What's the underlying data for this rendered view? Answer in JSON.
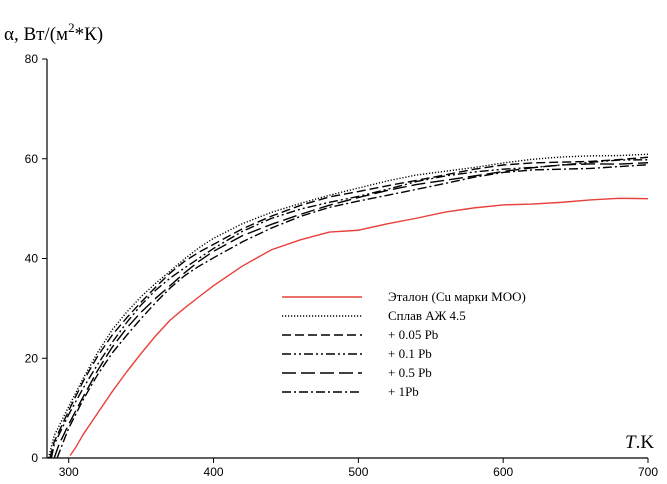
{
  "chart_data": {
    "type": "line",
    "ylabel": "α, Вт/(м2*К)",
    "ylabel_parts": {
      "main": "α, Вт/(м",
      "sup": "2",
      "tail": "*К)"
    },
    "xlabel": "T.K",
    "xlabel_parts": {
      "italic": "T",
      "rest": ".K"
    },
    "xlim": [
      285,
      700
    ],
    "ylim": [
      0,
      80
    ],
    "x_ticks": [
      300,
      400,
      500,
      600,
      700
    ],
    "y_ticks": [
      0,
      20,
      40,
      60,
      80
    ],
    "grid": false,
    "legend_position": "center-right",
    "series": [
      {
        "name": "Эталон (Cu марки МОО)",
        "color": "#e8403a",
        "dash": "solid",
        "x": [
          301,
          305,
          310,
          320,
          330,
          340,
          350,
          360,
          370,
          380,
          390,
          400,
          420,
          440,
          460,
          480,
          500,
          520,
          540,
          560,
          580,
          600,
          620,
          640,
          660,
          680,
          700
        ],
        "y": [
          0.5,
          2,
          4.5,
          9,
          13.5,
          17.5,
          21,
          24.3,
          27.4,
          30,
          32.5,
          34.8,
          38.6,
          41.6,
          43.5,
          45.2,
          45.8,
          47.2,
          48.2,
          49.2,
          49.9,
          50.6,
          51.0,
          51.5,
          51.9,
          52.0,
          52.0
        ]
      },
      {
        "name": "Сплав АЖ 4.5",
        "color": "#000000",
        "dash": "dotted",
        "x": [
          286,
          290,
          300,
          310,
          320,
          330,
          340,
          350,
          360,
          370,
          380,
          390,
          400,
          420,
          440,
          460,
          480,
          500,
          520,
          540,
          560,
          580,
          600,
          620,
          640,
          660,
          680,
          700
        ],
        "y": [
          0,
          4.5,
          10.5,
          16.2,
          21.2,
          25.5,
          29.0,
          32.3,
          35.2,
          37.7,
          40.0,
          42.0,
          43.8,
          46.9,
          49.4,
          51.3,
          52.8,
          54.0,
          55.3,
          56.6,
          57.6,
          58.5,
          59.3,
          59.8,
          60.1,
          60.4,
          60.7,
          60.9
        ]
      },
      {
        "name": "+ 0.05 Pb",
        "color": "#000000",
        "dash": "dashed",
        "x": [
          287,
          290,
          300,
          310,
          320,
          330,
          340,
          350,
          360,
          370,
          380,
          390,
          400,
          420,
          440,
          460,
          480,
          500,
          520,
          540,
          560,
          580,
          600,
          620,
          640,
          660,
          680,
          700
        ],
        "y": [
          0,
          3.5,
          9.5,
          15.2,
          20.2,
          24.6,
          28.3,
          31.5,
          34.3,
          36.9,
          39.2,
          41.2,
          43.0,
          46.2,
          48.6,
          50.5,
          52.1,
          53.3,
          54.7,
          55.9,
          56.9,
          57.8,
          58.5,
          59.0,
          59.4,
          59.7,
          60.0,
          60.3
        ]
      },
      {
        "name": "+ 0.1 Pb",
        "color": "#000000",
        "dash": "dash-dot-dot",
        "x": [
          288,
          290,
          300,
          310,
          320,
          330,
          340,
          350,
          360,
          370,
          380,
          390,
          400,
          420,
          440,
          460,
          480,
          500,
          520,
          540,
          560,
          580,
          600,
          620,
          640,
          660,
          680,
          700
        ],
        "y": [
          0,
          2.5,
          8.5,
          14.0,
          19.0,
          23.4,
          27.2,
          30.5,
          33.4,
          36.0,
          38.3,
          40.3,
          42.1,
          45.3,
          47.8,
          49.8,
          51.4,
          52.7,
          54.0,
          55.3,
          56.3,
          57.2,
          58.0,
          58.5,
          58.9,
          59.2,
          59.5,
          59.8
        ]
      },
      {
        "name": "+ 0.5 Pb",
        "color": "#000000",
        "dash": "long-dash",
        "x": [
          290,
          293,
          300,
          310,
          320,
          330,
          340,
          350,
          360,
          370,
          380,
          390,
          400,
          420,
          440,
          460,
          480,
          500,
          520,
          540,
          560,
          580,
          600,
          620,
          640,
          660,
          680,
          700
        ],
        "y": [
          0,
          2.5,
          7.0,
          12.5,
          17.6,
          22.0,
          25.8,
          29.2,
          32.2,
          34.8,
          37.2,
          39.3,
          41.2,
          44.5,
          47.0,
          49.1,
          50.8,
          52.1,
          53.4,
          54.7,
          55.8,
          56.8,
          57.6,
          58.1,
          58.5,
          58.8,
          59.0,
          59.2
        ]
      },
      {
        "name": "+ 1Pb",
        "color": "#000000",
        "dash": "dash-dot",
        "x": [
          292,
          295,
          300,
          310,
          320,
          330,
          340,
          350,
          360,
          370,
          380,
          390,
          400,
          420,
          440,
          460,
          480,
          500,
          520,
          540,
          560,
          580,
          600,
          620,
          640,
          660,
          680,
          700
        ],
        "y": [
          0,
          2.5,
          6.0,
          11.5,
          16.5,
          21.0,
          24.8,
          28.2,
          31.2,
          33.9,
          36.3,
          38.4,
          40.3,
          43.6,
          46.2,
          48.3,
          50.0,
          51.4,
          52.8,
          54.1,
          55.2,
          56.2,
          57.0,
          57.6,
          58.0,
          58.3,
          58.6,
          58.8
        ]
      }
    ]
  }
}
